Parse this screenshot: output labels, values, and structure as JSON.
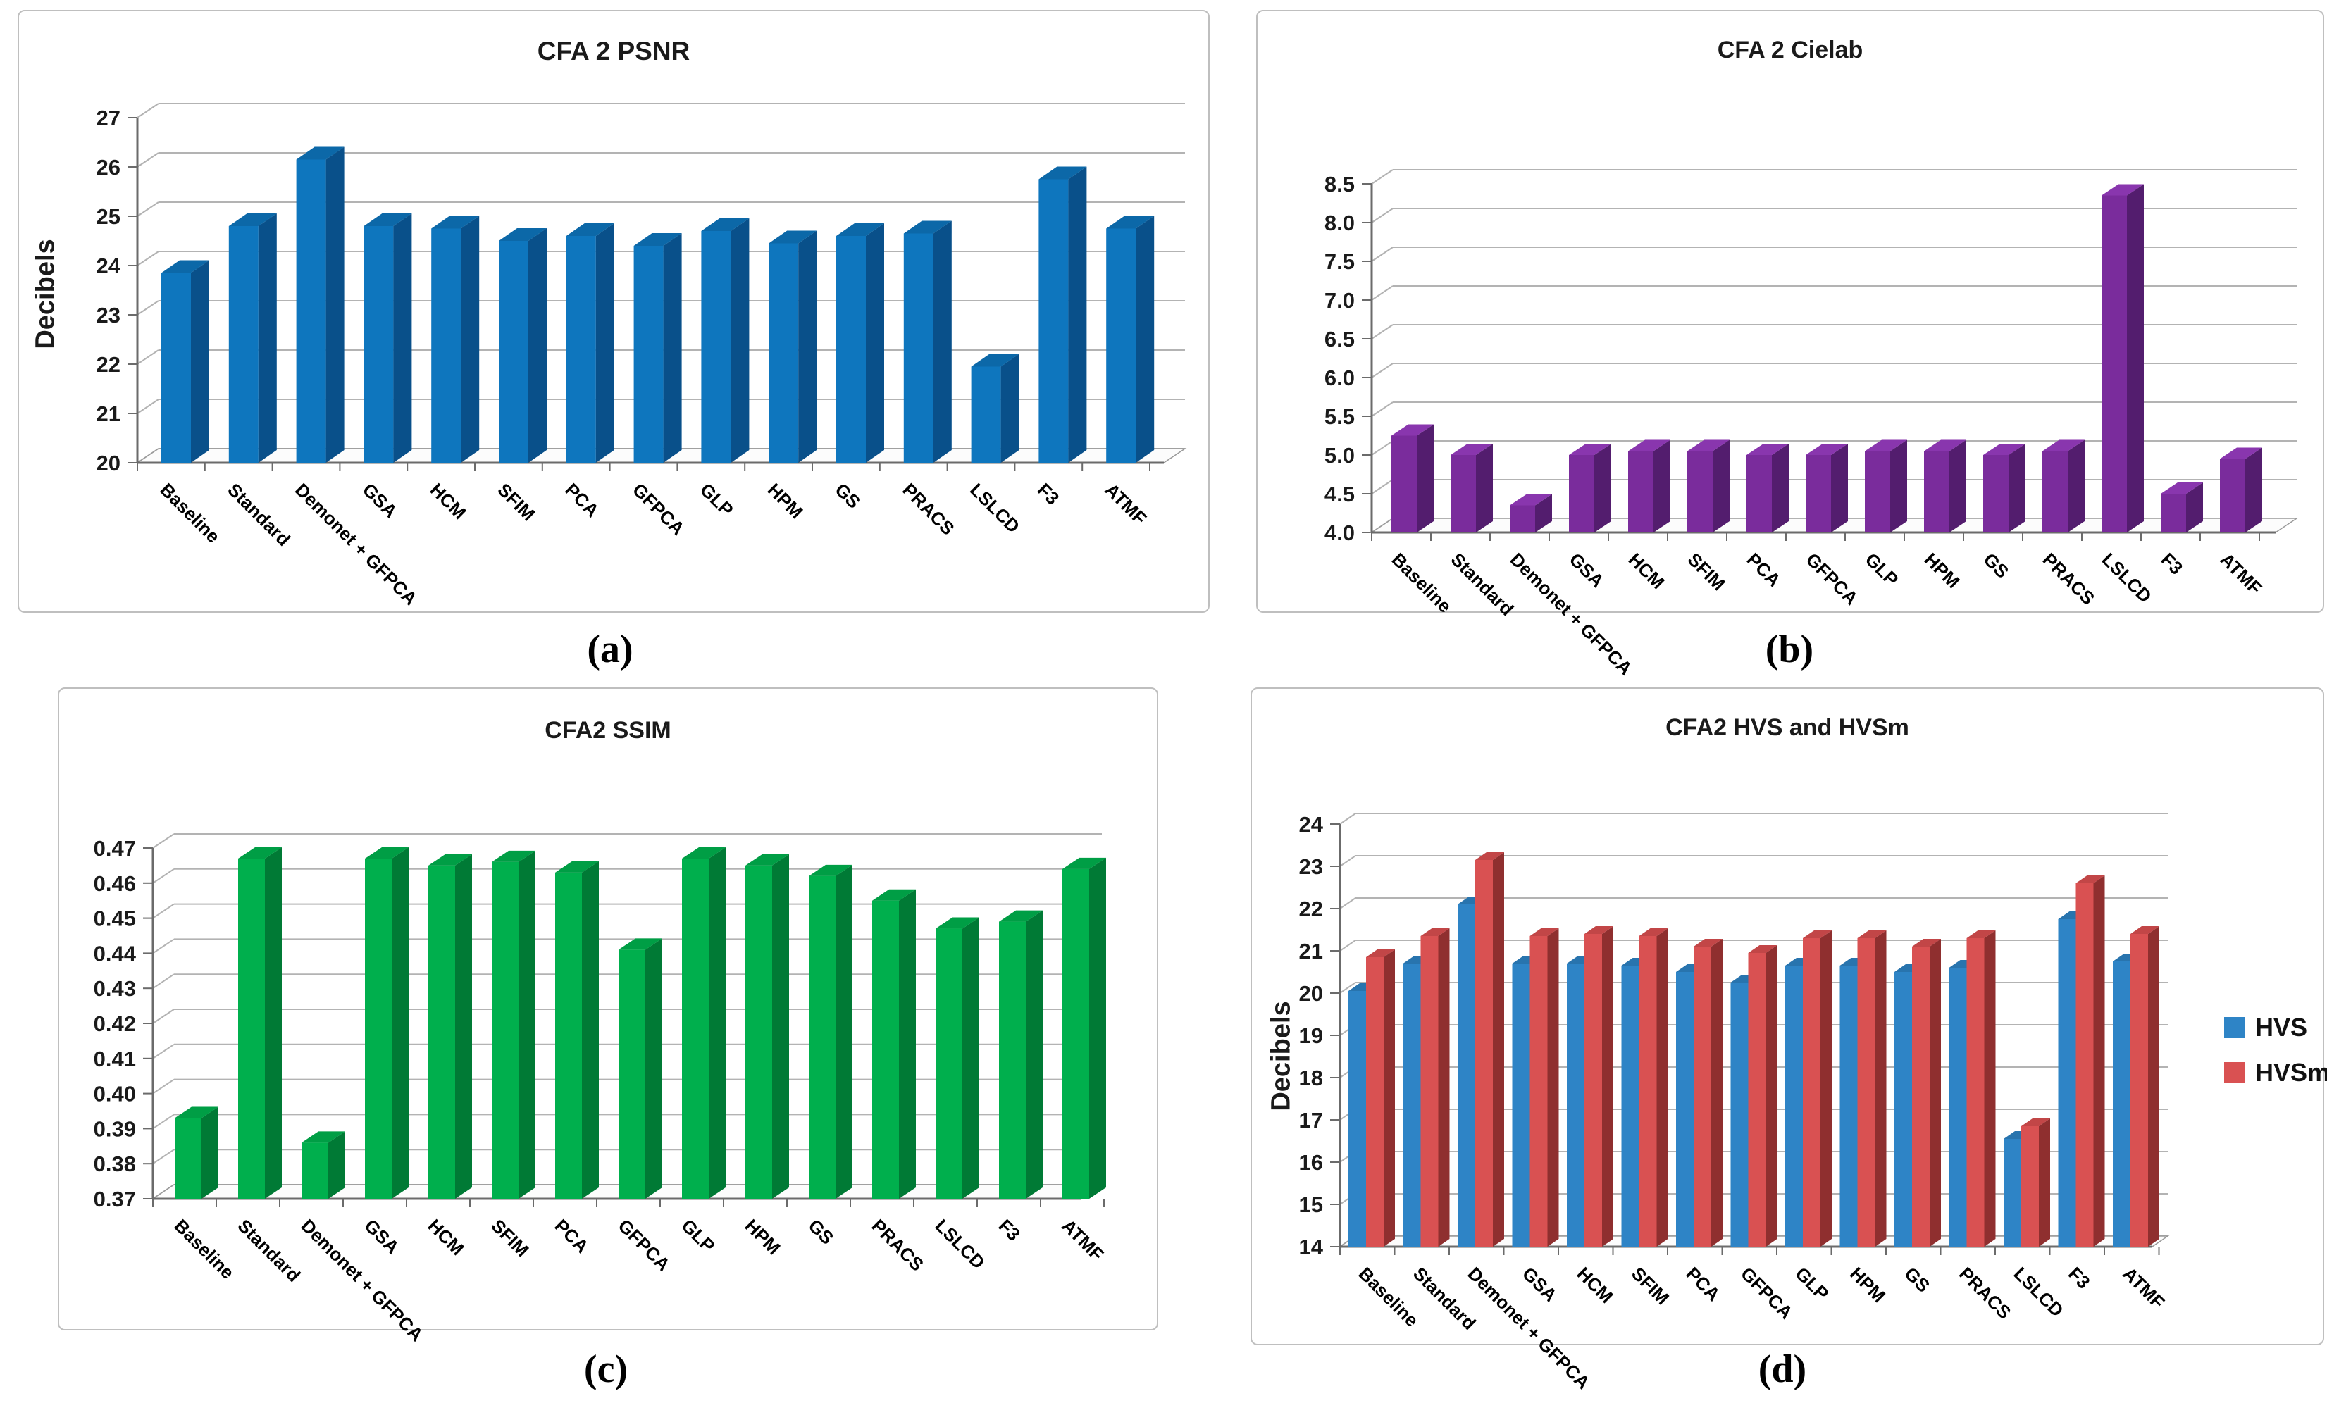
{
  "figure_background": "#ffffff",
  "chart_data": [
    {
      "id": "a",
      "type": "bar",
      "title": "CFA 2 PSNR",
      "caption": "(a)",
      "ylabel": "Decibels",
      "xlabel": "",
      "grid": true,
      "style": "3d-bar",
      "axis": {
        "min": 20,
        "max": 27,
        "step": 1,
        "decimals": 0
      },
      "ylim": [
        20,
        27
      ],
      "categories": [
        "Baseline",
        "Standard",
        "Demonet + GFPCA",
        "GSA",
        "HCM",
        "SFIM",
        "PCA",
        "GFPCA",
        "GLP",
        "HPM",
        "GS",
        "PRACS",
        "LSLCD",
        "F3",
        "ATMF"
      ],
      "series": [
        {
          "name": "PSNR",
          "color": {
            "front": "#0E76BE",
            "side": "#09508A",
            "top": "#0C68A8"
          },
          "values": [
            23.85,
            24.8,
            26.15,
            24.8,
            24.75,
            24.5,
            24.6,
            24.4,
            24.7,
            24.45,
            24.6,
            24.65,
            21.95,
            25.75,
            24.75
          ]
        }
      ]
    },
    {
      "id": "b",
      "type": "bar",
      "title": "CFA 2 Cielab",
      "caption": "(b)",
      "ylabel": "",
      "xlabel": "",
      "grid": true,
      "style": "3d-bar",
      "axis": {
        "min": 4.0,
        "max": 8.5,
        "step": 0.5,
        "decimals": 1
      },
      "ylim": [
        4.0,
        8.5
      ],
      "categories": [
        "Baseline",
        "Standard",
        "Demonet + GFPCA",
        "GSA",
        "HCM",
        "SFIM",
        "PCA",
        "GFPCA",
        "GLP",
        "HPM",
        "GS",
        "PRACS",
        "LSLCD",
        "F3",
        "ATMF"
      ],
      "series": [
        {
          "name": "Cielab",
          "color": {
            "front": "#7A2C9C",
            "side": "#531D6E",
            "top": "#8936AE"
          },
          "values": [
            5.25,
            5.0,
            4.35,
            5.0,
            5.05,
            5.05,
            5.0,
            5.0,
            5.05,
            5.05,
            5.0,
            5.05,
            8.35,
            4.5,
            4.95
          ]
        }
      ]
    },
    {
      "id": "c",
      "type": "bar",
      "title": "CFA2 SSIM",
      "caption": "(c)",
      "ylabel": "",
      "xlabel": "",
      "grid": true,
      "style": "3d-bar",
      "axis": {
        "min": 0.37,
        "max": 0.47,
        "step": 0.01,
        "decimals": 2
      },
      "ylim": [
        0.37,
        0.47
      ],
      "categories": [
        "Baseline",
        "Standard",
        "Demonet + GFPCA",
        "GSA",
        "HCM",
        "SFIM",
        "PCA",
        "GFPCA",
        "GLP",
        "HPM",
        "GS",
        "PRACS",
        "LSLCD",
        "F3",
        "ATMF"
      ],
      "series": [
        {
          "name": "SSIM",
          "color": {
            "front": "#00AF4D",
            "side": "#007A35",
            "top": "#009E45"
          },
          "values": [
            0.393,
            0.467,
            0.386,
            0.467,
            0.465,
            0.466,
            0.463,
            0.441,
            0.467,
            0.465,
            0.462,
            0.455,
            0.447,
            0.449,
            0.464
          ]
        }
      ]
    },
    {
      "id": "d",
      "type": "bar",
      "title": "CFA2 HVS and HVSm",
      "caption": "(d)",
      "ylabel": "Decibels",
      "xlabel": "",
      "grid": true,
      "style": "3d-bar",
      "legend_position": "right",
      "legend": [
        "HVS",
        "HVSm"
      ],
      "axis": {
        "min": 14,
        "max": 24,
        "step": 1,
        "decimals": 0
      },
      "ylim": [
        14,
        24
      ],
      "categories": [
        "Baseline",
        "Standard",
        "Demonet + GFPCA",
        "GSA",
        "HCM",
        "SFIM",
        "PCA",
        "GFPCA",
        "GLP",
        "HPM",
        "GS",
        "PRACS",
        "LSLCD",
        "F3",
        "ATMF"
      ],
      "series": [
        {
          "name": "HVS",
          "color": {
            "front": "#2E84C6",
            "side": "#1D5C8C",
            "top": "#2874AE"
          },
          "values": [
            20.05,
            20.7,
            22.1,
            20.7,
            20.7,
            20.65,
            20.5,
            20.25,
            20.65,
            20.65,
            20.5,
            20.6,
            16.55,
            21.75,
            20.75
          ]
        },
        {
          "name": "HVSm",
          "color": {
            "front": "#D95152",
            "side": "#8F2F2F",
            "top": "#C24647"
          },
          "values": [
            20.85,
            21.35,
            23.15,
            21.35,
            21.4,
            21.35,
            21.1,
            20.95,
            21.3,
            21.3,
            21.1,
            21.3,
            16.85,
            22.6,
            21.4
          ]
        }
      ]
    }
  ]
}
